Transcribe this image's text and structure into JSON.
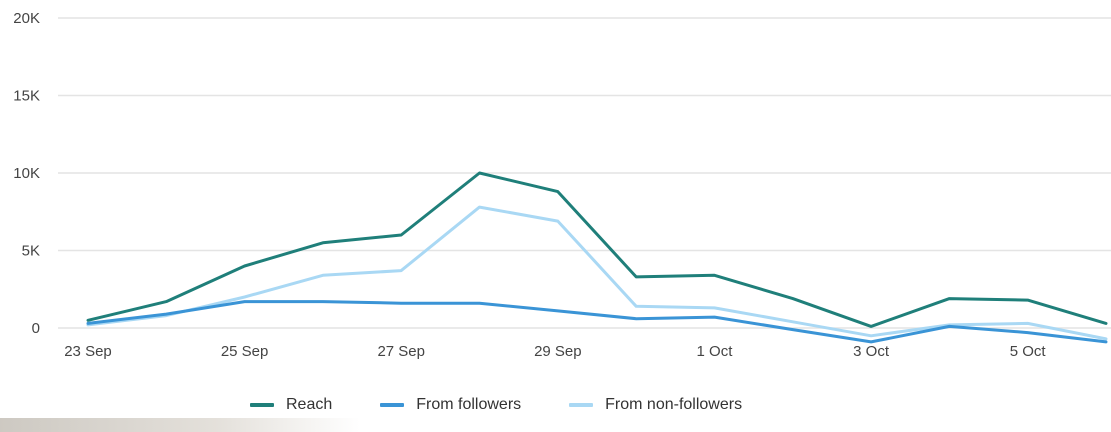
{
  "chart_data": {
    "type": "line",
    "x": [
      "23 Sep",
      "24 Sep",
      "25 Sep",
      "26 Sep",
      "27 Sep",
      "28 Sep",
      "29 Sep",
      "30 Sep",
      "1 Oct",
      "2 Oct",
      "3 Oct",
      "4 Oct",
      "5 Oct",
      "6 Oct"
    ],
    "xticks": [
      "23 Sep",
      "25 Sep",
      "27 Sep",
      "29 Sep",
      "1 Oct",
      "3 Oct",
      "5 Oct"
    ],
    "yticks": [
      "0",
      "5K",
      "10K",
      "15K",
      "20K"
    ],
    "ylim": [
      0,
      20000
    ],
    "grid": true,
    "legend_position": "bottom",
    "series": [
      {
        "name": "Reach",
        "color": "#1f7f7a",
        "values": [
          500,
          1700,
          4000,
          5500,
          6000,
          10000,
          8800,
          3300,
          3400,
          1900,
          100,
          1900,
          1800,
          300
        ]
      },
      {
        "name": "From followers",
        "color": "#3a94d6",
        "values": [
          300,
          900,
          1700,
          1700,
          1600,
          1600,
          1100,
          600,
          700,
          -100,
          -900,
          100,
          -300,
          -900
        ]
      },
      {
        "name": "From non-followers",
        "color": "#a9d8f4",
        "values": [
          200,
          800,
          2000,
          3400,
          3700,
          7800,
          6900,
          1400,
          1300,
          400,
          -500,
          200,
          300,
          -700
        ]
      }
    ]
  }
}
